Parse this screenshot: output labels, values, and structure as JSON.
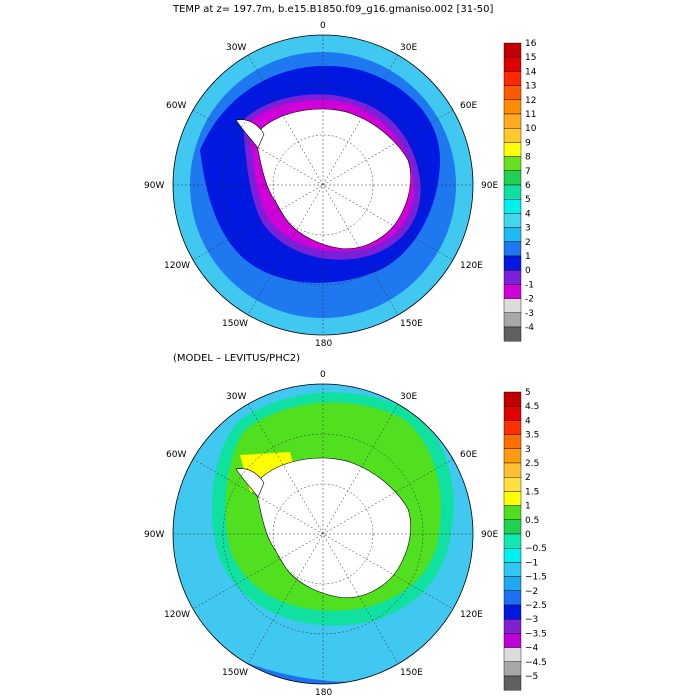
{
  "top_panel": {
    "title": "TEMP at z= 197.7m, b.e15.B1850.f09_g16.gmaniso.002 [31-50]",
    "longitude_labels": [
      "0",
      "30E",
      "60E",
      "90E",
      "120E",
      "150E",
      "180",
      "150W",
      "120W",
      "90W",
      "60W",
      "30W"
    ],
    "colorbar": {
      "labels": [
        "16",
        "15",
        "14",
        "13",
        "12",
        "11",
        "10",
        "9",
        "8",
        "7",
        "6",
        "5",
        "4",
        "3",
        "2",
        "1",
        "0",
        "-1",
        "-2",
        "-3",
        "-4"
      ],
      "colors": [
        "#c00000",
        "#e00000",
        "#ff2a00",
        "#ff5a00",
        "#ff8c00",
        "#ffaa20",
        "#ffc830",
        "#ffff00",
        "#66e020",
        "#20d050",
        "#10e0a0",
        "#00f0f0",
        "#40d8f0",
        "#20b8f0",
        "#1e78f0",
        "#0018e0",
        "#7a20d8",
        "#d000d8",
        "#dcdcdc",
        "#a8a8a8",
        "#606060"
      ]
    }
  },
  "bottom_panel": {
    "title": "(MODEL – LEVITUS/PHC2)",
    "longitude_labels": [
      "0",
      "30E",
      "60E",
      "90E",
      "120E",
      "150E",
      "180",
      "150W",
      "120W",
      "90W",
      "60W",
      "30W"
    ],
    "colorbar": {
      "labels": [
        "5",
        "4.5",
        "4",
        "3.5",
        "3",
        "2.5",
        "2",
        "1.5",
        "1",
        "0.5",
        "0",
        "−0.5",
        "−1",
        "−1.5",
        "−2",
        "−2.5",
        "−3",
        "−3.5",
        "−4",
        "−4.5",
        "−5"
      ],
      "colors": [
        "#c00000",
        "#e00000",
        "#ff3000",
        "#ff7000",
        "#ff9a10",
        "#ffc030",
        "#ffe040",
        "#ffff00",
        "#50e020",
        "#20d050",
        "#10e8b0",
        "#00f0f0",
        "#30c8f0",
        "#20a8f0",
        "#1e70f0",
        "#0018e0",
        "#8020d0",
        "#c000d8",
        "#dcdcdc",
        "#a8a8a8",
        "#606060"
      ]
    }
  }
}
